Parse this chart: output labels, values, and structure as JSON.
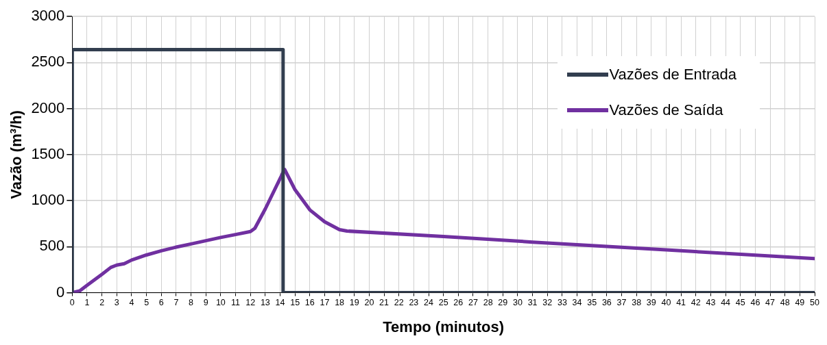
{
  "chart_data": {
    "type": "line",
    "xlabel": "Tempo (minutos)",
    "ylabel": "Vazão (m³/h)",
    "xlim": [
      0,
      50
    ],
    "xticks": [
      0,
      1,
      2,
      3,
      4,
      5,
      6,
      7,
      8,
      9,
      10,
      11,
      12,
      13,
      14,
      15,
      16,
      17,
      18,
      19,
      20,
      21,
      22,
      23,
      24,
      25,
      26,
      27,
      28,
      29,
      30,
      31,
      32,
      33,
      34,
      35,
      36,
      37,
      38,
      39,
      40,
      41,
      42,
      43,
      44,
      45,
      46,
      47,
      48,
      49,
      50
    ],
    "ylim": [
      0,
      3000
    ],
    "yticks": [
      0,
      500,
      1000,
      1500,
      2000,
      2500,
      3000
    ],
    "grid": true,
    "legend": "top right",
    "marker": "none",
    "line_style": "solid",
    "series": [
      {
        "name": "Vazões de Entrada",
        "color": "#323e4f",
        "x": [
          0,
          0,
          14.2,
          14.2,
          50
        ],
        "values": [
          0,
          2640,
          2640,
          0,
          0
        ]
      },
      {
        "name": "Vazões de Saída",
        "color": "#7030a0",
        "x": [
          0,
          0.5,
          1,
          1.5,
          2,
          2.6,
          3,
          3.5,
          4,
          5,
          6,
          7,
          8,
          9,
          10,
          11,
          12,
          12.3,
          13,
          14.3,
          15,
          16,
          17,
          18,
          18.5,
          25,
          31,
          40,
          50
        ],
        "values": [
          0,
          20,
          80,
          140,
          200,
          275,
          300,
          315,
          355,
          410,
          455,
          495,
          530,
          565,
          600,
          632,
          665,
          700,
          910,
          1340,
          1120,
          900,
          770,
          685,
          670,
          610,
          550,
          465,
          370
        ]
      }
    ]
  }
}
